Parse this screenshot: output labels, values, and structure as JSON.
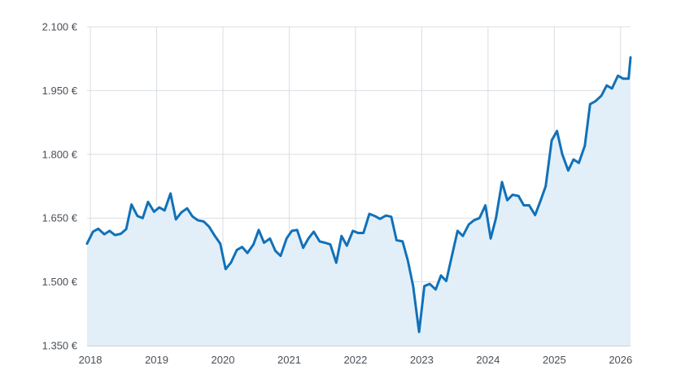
{
  "chart_data": {
    "type": "area",
    "title": "",
    "xlabel": "",
    "ylabel": "",
    "ylim": [
      1350,
      2100
    ],
    "xlim": [
      2017.95,
      2026.15
    ],
    "x_ticks": [
      2018,
      2019,
      2020,
      2021,
      2022,
      2023,
      2024,
      2025,
      2026
    ],
    "x_tick_labels": [
      "2018",
      "2019",
      "2020",
      "2021",
      "2022",
      "2023",
      "2024",
      "2025",
      "2026"
    ],
    "y_ticks": [
      1350,
      1500,
      1650,
      1800,
      1950,
      2100
    ],
    "y_tick_labels": [
      "1.350 €",
      "1.500 €",
      "1.650 €",
      "1.800 €",
      "1.950 €",
      "2.100 €"
    ],
    "grid": true,
    "colors": {
      "line": "#1171b9",
      "fill": "#e3eff8",
      "grid": "#d9dde2",
      "axis": "#9aa1a9"
    },
    "series": [
      {
        "x": [
          2017.95,
          2018.04,
          2018.12,
          2018.21,
          2018.29,
          2018.37,
          2018.46,
          2018.54,
          2018.62,
          2018.71,
          2018.79,
          2018.87,
          2018.96,
          2019.04,
          2019.12,
          2019.21,
          2019.29,
          2019.37,
          2019.46,
          2019.54,
          2019.62,
          2019.71,
          2019.79,
          2019.87,
          2019.96,
          2020.04,
          2020.12,
          2020.21,
          2020.29,
          2020.37,
          2020.46,
          2020.54,
          2020.62,
          2020.71,
          2020.79,
          2020.87,
          2020.96,
          2021.04,
          2021.12,
          2021.21,
          2021.29,
          2021.37,
          2021.46,
          2021.54,
          2021.62,
          2021.71,
          2021.79,
          2021.87,
          2021.96,
          2022.04,
          2022.12,
          2022.21,
          2022.29,
          2022.37,
          2022.46,
          2022.54,
          2022.62,
          2022.71,
          2022.79,
          2022.87,
          2022.96,
          2023.04,
          2023.12,
          2023.21,
          2023.29,
          2023.37,
          2023.46,
          2023.54,
          2023.62,
          2023.71,
          2023.79,
          2023.87,
          2023.96,
          2024.04,
          2024.12,
          2024.21,
          2024.29,
          2024.37,
          2024.46,
          2024.54,
          2024.62,
          2024.71,
          2024.79,
          2024.87,
          2024.96,
          2025.04,
          2025.12,
          2025.21,
          2025.29,
          2025.37,
          2025.46,
          2025.54,
          2025.62,
          2025.71,
          2025.79,
          2025.87,
          2025.96,
          2026.04,
          2026.12,
          2026.15
        ],
        "y": [
          1590,
          1618,
          1625,
          1612,
          1620,
          1610,
          1613,
          1624,
          1682,
          1655,
          1650,
          1688,
          1665,
          1675,
          1668,
          1708,
          1647,
          1663,
          1673,
          1654,
          1645,
          1642,
          1630,
          1610,
          1590,
          1530,
          1545,
          1575,
          1582,
          1568,
          1588,
          1622,
          1592,
          1602,
          1573,
          1561,
          1602,
          1620,
          1622,
          1580,
          1602,
          1618,
          1595,
          1592,
          1588,
          1545,
          1608,
          1585,
          1620,
          1615,
          1615,
          1660,
          1655,
          1648,
          1656,
          1653,
          1598,
          1595,
          1550,
          1490,
          1382,
          1490,
          1495,
          1482,
          1515,
          1502,
          1565,
          1620,
          1608,
          1635,
          1645,
          1650,
          1680,
          1602,
          1650,
          1735,
          1692,
          1705,
          1702,
          1680,
          1680,
          1657,
          1690,
          1725,
          1833,
          1855,
          1800,
          1762,
          1788,
          1780,
          1820,
          1918,
          1925,
          1938,
          1962,
          1955,
          1985,
          1978,
          1978,
          2028
        ]
      }
    ]
  }
}
